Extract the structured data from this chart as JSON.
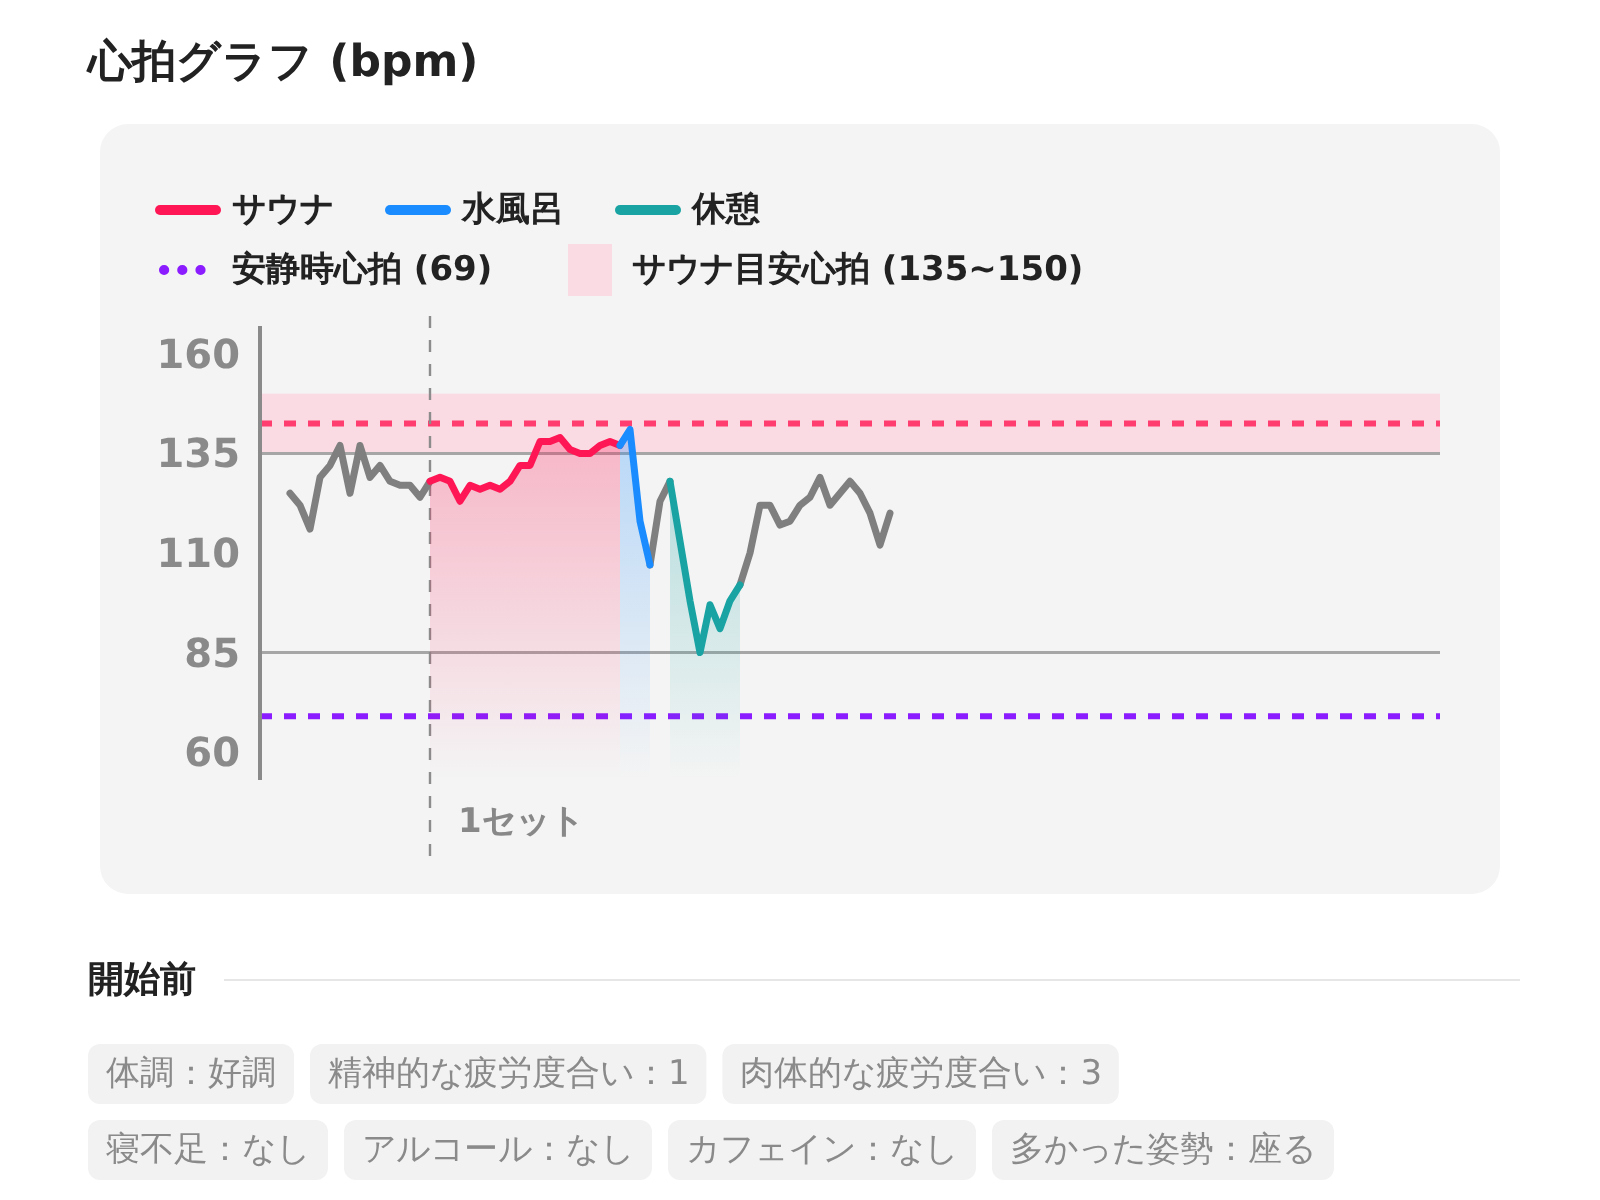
{
  "chart_data": {
    "type": "line",
    "title": "心拍グラフ (bpm)",
    "categories": [
      null,
      null,
      null,
      null,
      null,
      null,
      null,
      null,
      null,
      null,
      null,
      null,
      null,
      null,
      null,
      null,
      null,
      null,
      null,
      null,
      null,
      null,
      null,
      null,
      null,
      null,
      null,
      null,
      null,
      null,
      null,
      null,
      null,
      null,
      null,
      null,
      null,
      null,
      null,
      null,
      null,
      null,
      null,
      null,
      null,
      null,
      null,
      null,
      null,
      null,
      null,
      null,
      null,
      null,
      null,
      null,
      null,
      null,
      null,
      null,
      null,
      null,
      null,
      null,
      null,
      null,
      null,
      null,
      null,
      null,
      null,
      null,
      null,
      null,
      null,
      null,
      null,
      null,
      null,
      null,
      null,
      null,
      null,
      null,
      null,
      null,
      null,
      null,
      null,
      null,
      null,
      null,
      null,
      null,
      null,
      null,
      null,
      null,
      null,
      null,
      null,
      null,
      null,
      null,
      null,
      null,
      null,
      null,
      null,
      null,
      null,
      null,
      null,
      null,
      null,
      null,
      null,
      null,
      null
    ],
    "series": [
      {
        "color": "#7f7f7f",
        "values": [
          null,
          null,
          null,
          125,
          122,
          116,
          129,
          132,
          137,
          125,
          137,
          129,
          132,
          128,
          127,
          127,
          124,
          128,
          null,
          null,
          null,
          null,
          null,
          null,
          null,
          null,
          null,
          null,
          null,
          null,
          null,
          null,
          null,
          null,
          null,
          null,
          null,
          null,
          null,
          107,
          123,
          128,
          null,
          null,
          null,
          null,
          null,
          null,
          102,
          110,
          122,
          122,
          117,
          118,
          122,
          124,
          129,
          122,
          125,
          128,
          125,
          120,
          112,
          120,
          null,
          null,
          null,
          null,
          null,
          null,
          null,
          null,
          null,
          null,
          null,
          null,
          null,
          null,
          null,
          null,
          null,
          null,
          null,
          null,
          null,
          null,
          null,
          null,
          null,
          null,
          null,
          null,
          null,
          null,
          null,
          null,
          null,
          null,
          null,
          null,
          null,
          null,
          null,
          null,
          null,
          null,
          null,
          null,
          null,
          null,
          null,
          null,
          null,
          null,
          null,
          null,
          null,
          null,
          null
        ]
      },
      {
        "type": "area",
        "name": "サウナ",
        "color": "#ff1654",
        "values": [
          null,
          null,
          null,
          null,
          null,
          null,
          null,
          null,
          null,
          null,
          null,
          null,
          null,
          null,
          null,
          null,
          null,
          128,
          129,
          128,
          123,
          127,
          126,
          127,
          126,
          128,
          132,
          132,
          138,
          138,
          139,
          136,
          135,
          135,
          137,
          138,
          137,
          null,
          null,
          null,
          null,
          null,
          null,
          null,
          null,
          null,
          null,
          null,
          null,
          null,
          null,
          null,
          null,
          null,
          null,
          null,
          null,
          null,
          null,
          null,
          null,
          null,
          null,
          null,
          null,
          null,
          null,
          null,
          null,
          null,
          null,
          null,
          null,
          null,
          null,
          null,
          null,
          null,
          null,
          null,
          null,
          null,
          null,
          null,
          null,
          null,
          null,
          null,
          null,
          null,
          null,
          null,
          null,
          null,
          null,
          null,
          null,
          null,
          null,
          null,
          null,
          null,
          null,
          null,
          null,
          null,
          null,
          null,
          null,
          null,
          null,
          null,
          null,
          null,
          null,
          null,
          null,
          null,
          null
        ]
      },
      {
        "type": "area",
        "name": "水風呂",
        "color": "#1a8cff",
        "values": [
          null,
          null,
          null,
          null,
          null,
          null,
          null,
          null,
          null,
          null,
          null,
          null,
          null,
          null,
          null,
          null,
          null,
          null,
          null,
          null,
          null,
          null,
          null,
          null,
          null,
          null,
          null,
          null,
          null,
          null,
          null,
          null,
          null,
          null,
          null,
          null,
          137,
          141,
          118,
          107,
          null,
          null,
          null,
          null,
          null,
          null,
          null,
          null,
          null,
          null,
          null,
          null,
          null,
          null,
          null,
          null,
          null,
          null,
          null,
          null,
          null,
          null,
          null,
          null,
          null,
          null,
          null,
          null,
          null,
          null,
          null,
          null,
          null,
          null,
          null,
          null,
          null,
          null,
          null,
          null,
          null,
          null,
          null,
          null,
          null,
          null,
          null,
          null,
          null,
          null,
          null,
          null,
          null,
          null,
          null,
          null,
          null,
          null,
          null,
          null,
          null,
          null,
          null,
          null,
          null,
          null,
          null,
          null,
          null,
          null,
          null,
          null,
          null,
          null,
          null,
          null,
          null,
          null,
          null
        ]
      },
      {
        "type": "area",
        "name": "休憩",
        "color": "#1aa3a3",
        "values": [
          null,
          null,
          null,
          null,
          null,
          null,
          null,
          null,
          null,
          null,
          null,
          null,
          null,
          null,
          null,
          null,
          null,
          null,
          null,
          null,
          null,
          null,
          null,
          null,
          null,
          null,
          null,
          null,
          null,
          null,
          null,
          null,
          null,
          null,
          null,
          null,
          null,
          null,
          null,
          null,
          null,
          128,
          113,
          98,
          85,
          97,
          91,
          98,
          102,
          null,
          null,
          null,
          null,
          null,
          null,
          null,
          null,
          null,
          null,
          null,
          null,
          null,
          null,
          null,
          null,
          null,
          null,
          null,
          null,
          null,
          null,
          null,
          null,
          null,
          null,
          null,
          null,
          null,
          null,
          null,
          null,
          null,
          null,
          null,
          null,
          null,
          null,
          null,
          null,
          null,
          null,
          null,
          null,
          null,
          null,
          null,
          null,
          null,
          null,
          null,
          null,
          null,
          null,
          null,
          null,
          null,
          null,
          null,
          null,
          null,
          null,
          null,
          null,
          null,
          null,
          null,
          null,
          null,
          null
        ]
      }
    ],
    "ylim": [
      53,
      167
    ],
    "yticks": [
      60,
      85,
      110,
      135,
      160
    ],
    "ref_lines": [
      {
        "axis": "y",
        "value": 135,
        "color": "#a6a6a6",
        "line_style": "solid"
      },
      {
        "axis": "y",
        "value": 85,
        "color": "#a6a6a6",
        "line_style": "solid"
      },
      {
        "axis": "y",
        "value": 142.5,
        "color": "#ff3d6e",
        "line_style": "dashed"
      },
      {
        "axis": "y",
        "value": 69,
        "color": "#8a1cff",
        "line_style": "dashed",
        "label": "安静時心拍 (69)"
      }
    ],
    "bands": [
      {
        "axis": "y",
        "from": 135,
        "to": 150,
        "color": "#fbdbe3",
        "label": "サウナ目安心拍 (135~150)"
      }
    ],
    "legend": "top left",
    "annotations": [
      "1セット",
      "開始前",
      "体調：好調",
      "精神的な疲労度合い：1",
      "肉体的な疲労度合い：3",
      "寝不足：なし",
      "アルコール：なし",
      "カフェイン：なし",
      "多かった姿勢：座る"
    ]
  }
}
